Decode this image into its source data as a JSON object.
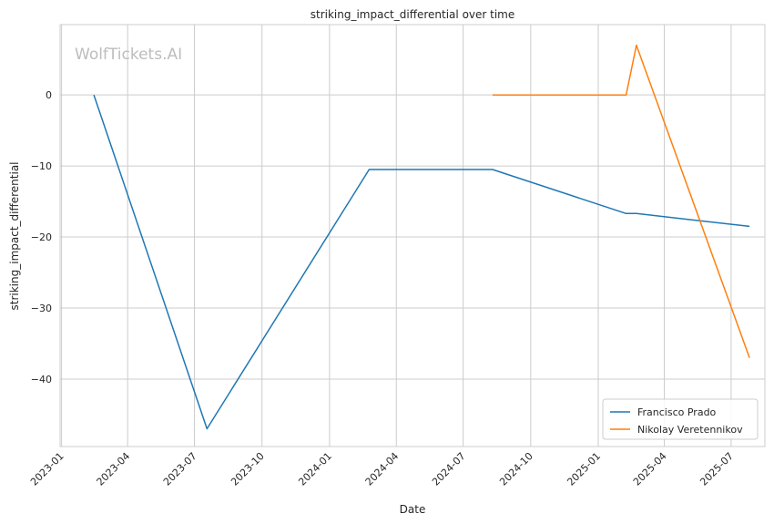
{
  "watermark": "WolfTickets.AI",
  "chart_data": {
    "type": "line",
    "title": "striking_impact_differential over time",
    "xlabel": "Date",
    "ylabel": "striking_impact_differential",
    "x_ticks": [
      "2023-01",
      "2023-04",
      "2023-07",
      "2023-10",
      "2024-01",
      "2024-04",
      "2024-07",
      "2024-10",
      "2025-01",
      "2025-04",
      "2025-07"
    ],
    "xlim": [
      "2022-12-30",
      "2025-08-16"
    ],
    "y_ticks": [
      0,
      -10,
      -20,
      -30,
      -40
    ],
    "ylim": [
      -49.5,
      9.9
    ],
    "grid": true,
    "legend_position": "bottom-right",
    "series": [
      {
        "name": "Francisco Prado",
        "color": "#1f77b4",
        "points": [
          {
            "x": "2023-02-14",
            "y": 0
          },
          {
            "x": "2023-07-18",
            "y": -47
          },
          {
            "x": "2024-02-24",
            "y": -10.5
          },
          {
            "x": "2024-08-10",
            "y": -10.5
          },
          {
            "x": "2025-02-08",
            "y": -16.7
          },
          {
            "x": "2025-02-22",
            "y": -16.7
          },
          {
            "x": "2025-07-26",
            "y": -18.5
          }
        ]
      },
      {
        "name": "Nikolay Veretennikov",
        "color": "#ff7f0e",
        "points": [
          {
            "x": "2024-08-10",
            "y": 0
          },
          {
            "x": "2025-02-08",
            "y": 0
          },
          {
            "x": "2025-02-22",
            "y": 7
          },
          {
            "x": "2025-07-26",
            "y": -37
          }
        ]
      }
    ]
  }
}
